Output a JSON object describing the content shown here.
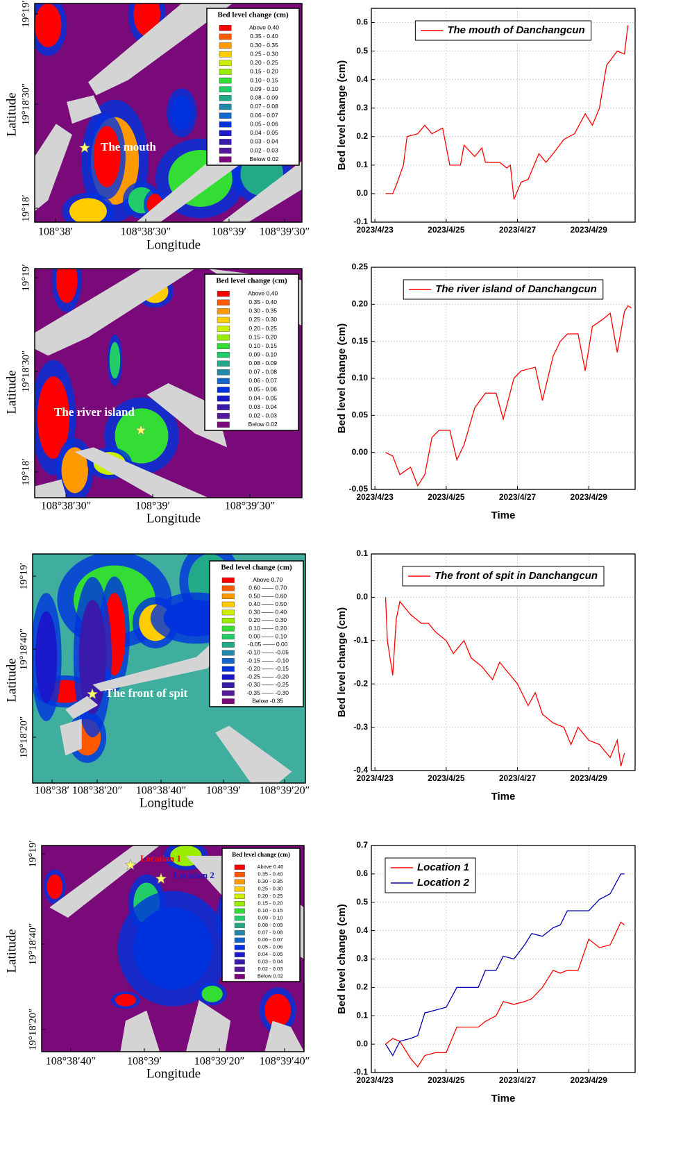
{
  "maps": [
    {
      "x_label": "Longitude",
      "y_label": "Latitude",
      "xticks": [
        "108°38′",
        "108°38′30″",
        "108°39′",
        "108°39′30″"
      ],
      "yticks": [
        "19°19′",
        "19°18′30″",
        "19°18′"
      ],
      "legend_title": "Bed level change (cm)",
      "legend": [
        "Above 0.40",
        "0.35  -  0.40",
        "0.30  -  0.35",
        "0.25  -  0.30",
        "0.20  -  0.25",
        "0.15  -  0.20",
        "0.10  -  0.15",
        "0.09  -  0.10",
        "0.08  -  0.09",
        "0.07  -  0.08",
        "0.06  -  0.07",
        "0.05  -  0.06",
        "0.04  -  0.05",
        "0.03  -  0.04",
        "0.02  -  0.03",
        "Below 0.02"
      ],
      "annotations": [
        "The mouth"
      ]
    },
    {
      "x_label": "Longitude",
      "y_label": "Latitude",
      "xticks": [
        "108°38′30″",
        "108°39′",
        "108°39′30″"
      ],
      "yticks": [
        "19°19′",
        "19°18′30″",
        "19°18′"
      ],
      "legend_title": "Bed level change (cm)",
      "legend": [
        "Above 0.40",
        "0.35  -  0.40",
        "0.30  -  0.35",
        "0.25  -  0.30",
        "0.20  -  0.25",
        "0.15  -  0.20",
        "0.10  -  0.15",
        "0.09  -  0.10",
        "0.08  -  0.09",
        "0.07  -  0.08",
        "0.06  -  0.07",
        "0.05  -  0.06",
        "0.04  -  0.05",
        "0.03  -  0.04",
        "0.02  -  0.03",
        "Below 0.02"
      ],
      "annotations": [
        "The river island"
      ]
    },
    {
      "x_label": "Longitude",
      "y_label": "Latitude",
      "xticks": [
        "108°38′",
        "108°38′20″",
        "108°38′40″",
        "108°39′",
        "108°39′20″"
      ],
      "yticks": [
        "19°19′",
        "19°18′40″",
        "19°18′20″"
      ],
      "legend_title": "Bed level change (cm)",
      "legend": [
        "Above 0.70",
        "0.60 —— 0.70",
        "0.50 —— 0.60",
        "0.40 —— 0.50",
        "0.30 —— 0.40",
        "0.20 —— 0.30",
        "0.10 —— 0.20",
        "0.00 —— 0.10",
        "-0.05 —— 0.00",
        "-0.10 —— -0.05",
        "-0.15 —— -0.10",
        "-0.20 —— -0.15",
        "-0.25 —— -0.20",
        "-0.30 —— -0.25",
        "-0.35 —— -0.30",
        "Below -0.35"
      ],
      "annotations": [
        "The front of spit"
      ]
    },
    {
      "x_label": "Longitude",
      "y_label": "Latitude",
      "xticks": [
        "108°38′40″",
        "108°39′",
        "108°39′20″",
        "108°39′40″"
      ],
      "yticks": [
        "19°19′",
        "19°18′40″",
        "19°18′20″"
      ],
      "legend_title": "Bed level change (cm)",
      "legend": [
        "Above 0.40",
        "0.35  -  0.40",
        "0.30  -  0.35",
        "0.25  -  0.30",
        "0.20  -  0.25",
        "0.15  -  0.20",
        "0.10  -  0.15",
        "0.09  -  0.10",
        "0.08  -  0.09",
        "0.07  -  0.08",
        "0.06  -  0.07",
        "0.05  -  0.06",
        "0.04  -  0.05",
        "0.03  -  0.04",
        "0.02  -  0.03",
        "Below 0.02"
      ],
      "annotations": [
        "Location 1",
        "Location 2"
      ]
    }
  ],
  "legend_colors": [
    "#ff0000",
    "#ff5a00",
    "#ff9900",
    "#ffcc00",
    "#ccee00",
    "#99ee00",
    "#33dd33",
    "#22cc66",
    "#22aa88",
    "#2288aa",
    "#1166cc",
    "#0033dd",
    "#1a1acc",
    "#3a1aaa",
    "#551a99",
    "#7a0a7a"
  ],
  "chart_data": [
    {
      "type": "line",
      "y_label": "Bed level change (cm)",
      "grid": true,
      "legend_position": "top",
      "xlim": [
        22.9,
        30.3
      ],
      "xticks": [
        {
          "value": 23,
          "label": "2023/4/23"
        },
        {
          "value": 25,
          "label": "2023/4/25"
        },
        {
          "value": 27,
          "label": "2023/4/27"
        },
        {
          "value": 29,
          "label": "2023/4/29"
        }
      ],
      "ylim": [
        -0.1,
        0.65
      ],
      "yticks": [
        -0.1,
        {
          "value": 0,
          "label": "0.0"
        },
        0.1,
        0.2,
        0.3,
        0.4,
        0.5,
        0.6
      ],
      "x": [
        23.3,
        23.5,
        23.6,
        23.8,
        23.9,
        24.2,
        24.4,
        24.6,
        24.9,
        25.1,
        25.4,
        25.5,
        25.8,
        26.0,
        26.1,
        26.5,
        26.7,
        26.8,
        26.9,
        27.1,
        27.3,
        27.6,
        27.8,
        28.0,
        28.3,
        28.6,
        28.9,
        29.1,
        29.3,
        29.5,
        29.8,
        30.0,
        30.1
      ],
      "series": [
        {
          "name": "The mouth of Danchangcun",
          "color": "#ff0000",
          "values": [
            0,
            0.0,
            0.03,
            0.1,
            0.2,
            0.21,
            0.24,
            0.21,
            0.23,
            0.1,
            0.1,
            0.17,
            0.13,
            0.16,
            0.11,
            0.11,
            0.09,
            0.1,
            -0.02,
            0.04,
            0.05,
            0.14,
            0.11,
            0.14,
            0.19,
            0.21,
            0.28,
            0.24,
            0.3,
            0.45,
            0.5,
            0.49,
            0.59
          ]
        }
      ]
    },
    {
      "type": "line",
      "y_label": "Bed level change (cm)",
      "x_label": "Time",
      "grid": true,
      "legend_position": "top",
      "xlim": [
        22.9,
        30.3
      ],
      "xticks": [
        {
          "value": 23,
          "label": "2023/4/23"
        },
        {
          "value": 25,
          "label": "2023/4/25"
        },
        {
          "value": 27,
          "label": "2023/4/27"
        },
        {
          "value": 29,
          "label": "2023/4/29"
        }
      ],
      "ylim": [
        -0.05,
        0.25
      ],
      "yticks": [
        -0.05,
        {
          "value": 0,
          "label": "0.00"
        },
        0.05,
        {
          "value": 0.1,
          "label": "0.10"
        },
        0.15,
        {
          "value": 0.2,
          "label": "0.20"
        },
        0.25
      ],
      "x": [
        23.3,
        23.5,
        23.7,
        24.0,
        24.2,
        24.4,
        24.6,
        24.8,
        25.1,
        25.3,
        25.5,
        25.8,
        26.1,
        26.4,
        26.6,
        26.9,
        27.1,
        27.5,
        27.7,
        28.0,
        28.2,
        28.4,
        28.7,
        28.9,
        29.1,
        29.4,
        29.6,
        29.8,
        30.0,
        30.1,
        30.2
      ],
      "series": [
        {
          "name": "The river island of Danchangcun",
          "color": "#ff0000",
          "values": [
            0,
            -0.005,
            -0.03,
            -0.02,
            -0.045,
            -0.03,
            0.02,
            0.03,
            0.03,
            -0.01,
            0.01,
            0.06,
            0.08,
            0.08,
            0.045,
            0.1,
            0.11,
            0.115,
            0.07,
            0.13,
            0.15,
            0.16,
            0.16,
            0.11,
            0.17,
            0.18,
            0.188,
            0.135,
            0.19,
            0.198,
            0.195
          ]
        }
      ]
    },
    {
      "type": "line",
      "y_label": "Bed level change (cm)",
      "x_label": "Time",
      "grid": true,
      "legend_position": "top",
      "xlim": [
        22.9,
        30.3
      ],
      "xticks": [
        {
          "value": 23,
          "label": "2023/4/23"
        },
        {
          "value": 25,
          "label": "2023/4/25"
        },
        {
          "value": 27,
          "label": "2023/4/27"
        },
        {
          "value": 29,
          "label": "2023/4/29"
        }
      ],
      "ylim": [
        -0.4,
        0.1
      ],
      "yticks": [
        -0.4,
        -0.3,
        -0.2,
        -0.1,
        {
          "value": 0,
          "label": "0.0"
        },
        0.1
      ],
      "x": [
        23.3,
        23.35,
        23.5,
        23.6,
        23.7,
        24.0,
        24.3,
        24.5,
        24.7,
        25.0,
        25.2,
        25.5,
        25.7,
        26.0,
        26.3,
        26.5,
        26.7,
        27.0,
        27.3,
        27.5,
        27.7,
        28.0,
        28.3,
        28.5,
        28.7,
        29.0,
        29.3,
        29.6,
        29.8,
        29.9,
        30.0
      ],
      "series": [
        {
          "name": "The front of spit in Danchangcun",
          "color": "#ff0000",
          "values": [
            0,
            -0.1,
            -0.18,
            -0.05,
            -0.01,
            -0.04,
            -0.06,
            -0.06,
            -0.08,
            -0.1,
            -0.13,
            -0.1,
            -0.14,
            -0.16,
            -0.19,
            -0.15,
            -0.17,
            -0.2,
            -0.25,
            -0.22,
            -0.27,
            -0.29,
            -0.3,
            -0.34,
            -0.3,
            -0.33,
            -0.34,
            -0.37,
            -0.33,
            -0.39,
            -0.36
          ]
        }
      ]
    },
    {
      "type": "line",
      "y_label": "Bed level change (cm)",
      "x_label": "Time",
      "grid": true,
      "legend_position": "top-left",
      "xlim": [
        22.9,
        30.3
      ],
      "xticks": [
        {
          "value": 23,
          "label": "2023/4/23"
        },
        {
          "value": 25,
          "label": "2023/4/25"
        },
        {
          "value": 27,
          "label": "2023/4/27"
        },
        {
          "value": 29,
          "label": "2023/4/29"
        }
      ],
      "ylim": [
        -0.1,
        0.7
      ],
      "yticks": [
        -0.1,
        {
          "value": 0,
          "label": "0.0"
        },
        0.1,
        0.2,
        0.3,
        0.4,
        0.5,
        0.6,
        0.7
      ],
      "x": [
        23.3,
        23.5,
        23.7,
        24.0,
        24.2,
        24.4,
        24.7,
        25.0,
        25.3,
        25.6,
        25.9,
        26.1,
        26.4,
        26.6,
        26.9,
        27.2,
        27.4,
        27.7,
        28.0,
        28.2,
        28.4,
        28.7,
        29.0,
        29.3,
        29.6,
        29.9,
        30.0
      ],
      "series": [
        {
          "name": "Location 1",
          "color": "#ff0000",
          "values": [
            0,
            0.02,
            0.01,
            -0.05,
            -0.08,
            -0.04,
            -0.03,
            -0.03,
            0.06,
            0.06,
            0.06,
            0.08,
            0.1,
            0.15,
            0.14,
            0.15,
            0.16,
            0.2,
            0.26,
            0.25,
            0.26,
            0.26,
            0.37,
            0.34,
            0.35,
            0.43,
            0.42
          ]
        },
        {
          "name": "Location 2",
          "color": "#0000b0",
          "values": [
            0,
            -0.04,
            0.01,
            0.02,
            0.03,
            0.11,
            0.12,
            0.13,
            0.2,
            0.2,
            0.2,
            0.26,
            0.26,
            0.31,
            0.3,
            0.35,
            0.39,
            0.38,
            0.41,
            0.42,
            0.47,
            0.47,
            0.47,
            0.51,
            0.53,
            0.6,
            0.6
          ]
        }
      ]
    }
  ]
}
